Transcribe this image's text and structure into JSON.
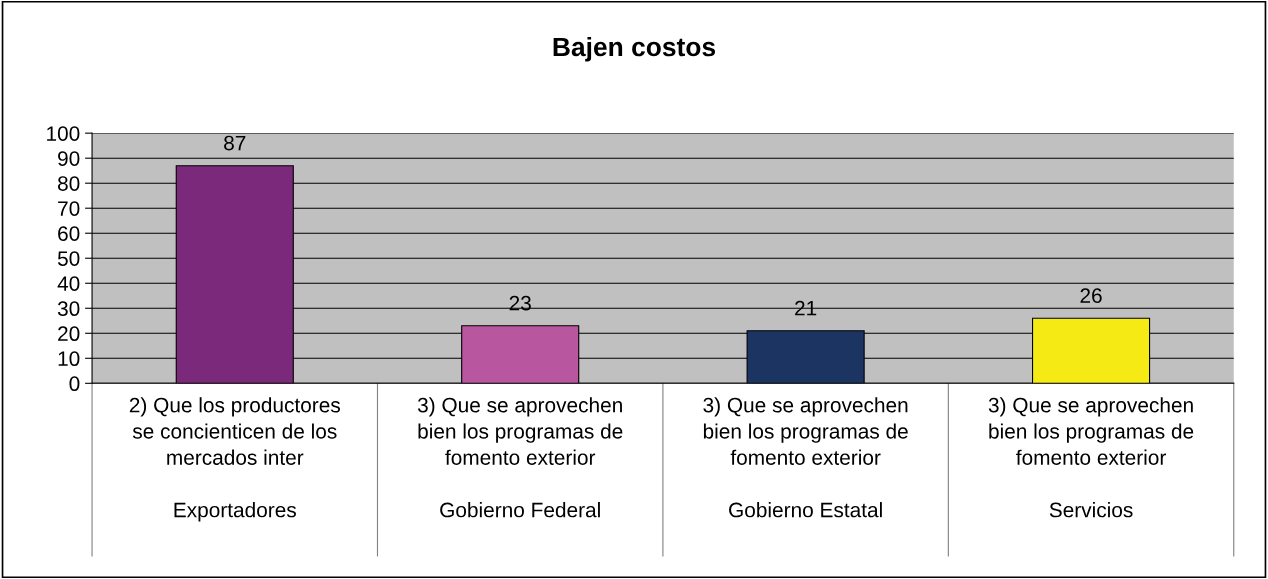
{
  "chart_data": {
    "type": "bar",
    "title": "Bajen costos",
    "categories": [
      "2) Que los productores\nse concienticen de los\nmercados inter\n\nExportadores",
      "3) Que se aprovechen\nbien los programas de\nfomento exterior\n\nGobierno Federal",
      "3) Que se aprovechen\nbien los programas de\nfomento exterior\n\nGobierno Estatal",
      "3) Que se aprovechen\nbien los programas de\nfomento exterior\n\nServicios"
    ],
    "values": [
      87,
      23,
      21,
      26
    ],
    "colors": [
      "#7b2a7b",
      "#b956a0",
      "#1c3461",
      "#f5ea14"
    ],
    "ylim": [
      0,
      100
    ],
    "yticks": [
      0,
      10,
      20,
      30,
      40,
      50,
      60,
      70,
      80,
      90,
      100
    ],
    "grid": "y",
    "data_labels": true
  }
}
